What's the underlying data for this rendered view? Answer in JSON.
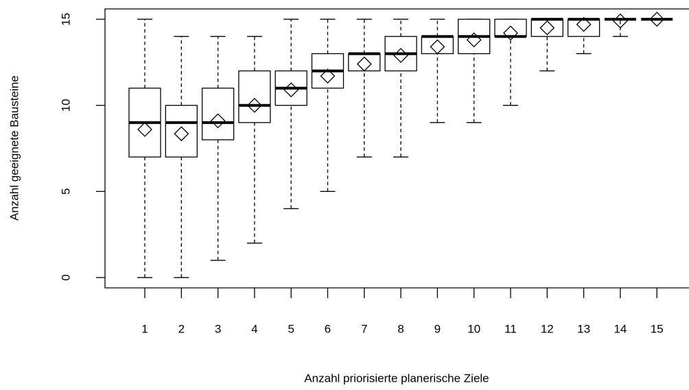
{
  "chart_data": {
    "type": "box",
    "x_label": "Anzahl priorisierte planerische Ziele",
    "y_label": "Anzahl geeignete Bausteine",
    "categories": [
      "1",
      "2",
      "3",
      "4",
      "5",
      "6",
      "7",
      "8",
      "9",
      "10",
      "11",
      "12",
      "13",
      "14",
      "15"
    ],
    "min": [
      0,
      0,
      1,
      2,
      4,
      5,
      7,
      7,
      9,
      9,
      10,
      12,
      13,
      14,
      15
    ],
    "q1": [
      7,
      7,
      8,
      9,
      10,
      11,
      12,
      12,
      13,
      13,
      14,
      14,
      14,
      15,
      15
    ],
    "median": [
      9,
      9,
      9,
      10,
      11,
      12,
      13,
      13,
      14,
      14,
      14,
      15,
      15,
      15,
      15
    ],
    "q3": [
      11,
      10,
      11,
      12,
      12,
      13,
      13,
      14,
      14,
      15,
      15,
      15,
      15,
      15,
      15
    ],
    "max": [
      15,
      14,
      14,
      14,
      15,
      15,
      15,
      15,
      15,
      15,
      15,
      15,
      15,
      15,
      15
    ],
    "mean": [
      8.6,
      8.35,
      9.1,
      10.0,
      10.9,
      11.7,
      12.4,
      12.9,
      13.4,
      13.8,
      14.2,
      14.5,
      14.7,
      14.9,
      15.0
    ],
    "color": "#000000",
    "ylim": [
      -0.6,
      15.6
    ],
    "yticks": [
      0,
      5,
      10,
      15
    ]
  }
}
